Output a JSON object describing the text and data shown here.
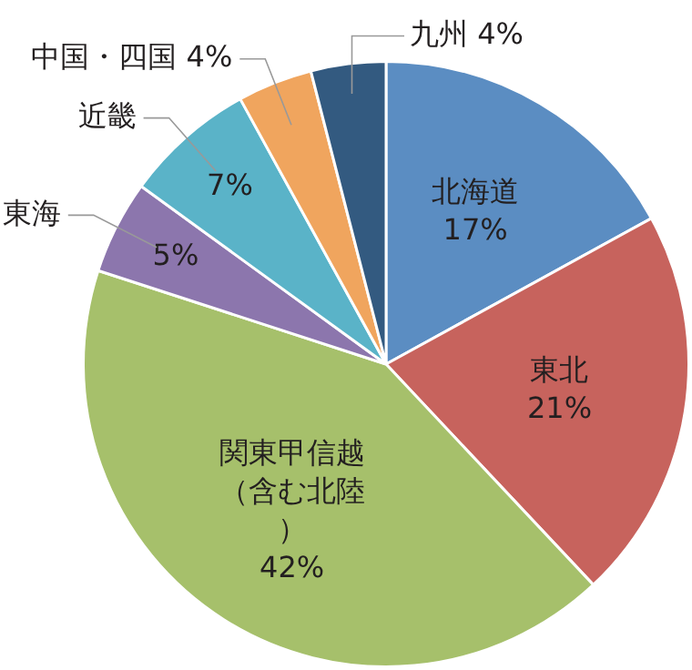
{
  "chart_data": {
    "type": "pie",
    "categories": [
      "北海道",
      "東北",
      "関東甲信越（含む北陸）",
      "東海",
      "近畿",
      "中国・四国",
      "九州"
    ],
    "values": [
      17,
      21,
      42,
      5,
      7,
      4,
      4
    ],
    "value_labels": [
      "17%",
      "21%",
      "42%",
      "5%",
      "7%",
      "4%",
      "4%"
    ],
    "colors": [
      "#5b8dc2",
      "#c7635d",
      "#a6c06b",
      "#8c76ad",
      "#5ab3c8",
      "#f0a55e",
      "#335a80"
    ],
    "legend": false
  }
}
